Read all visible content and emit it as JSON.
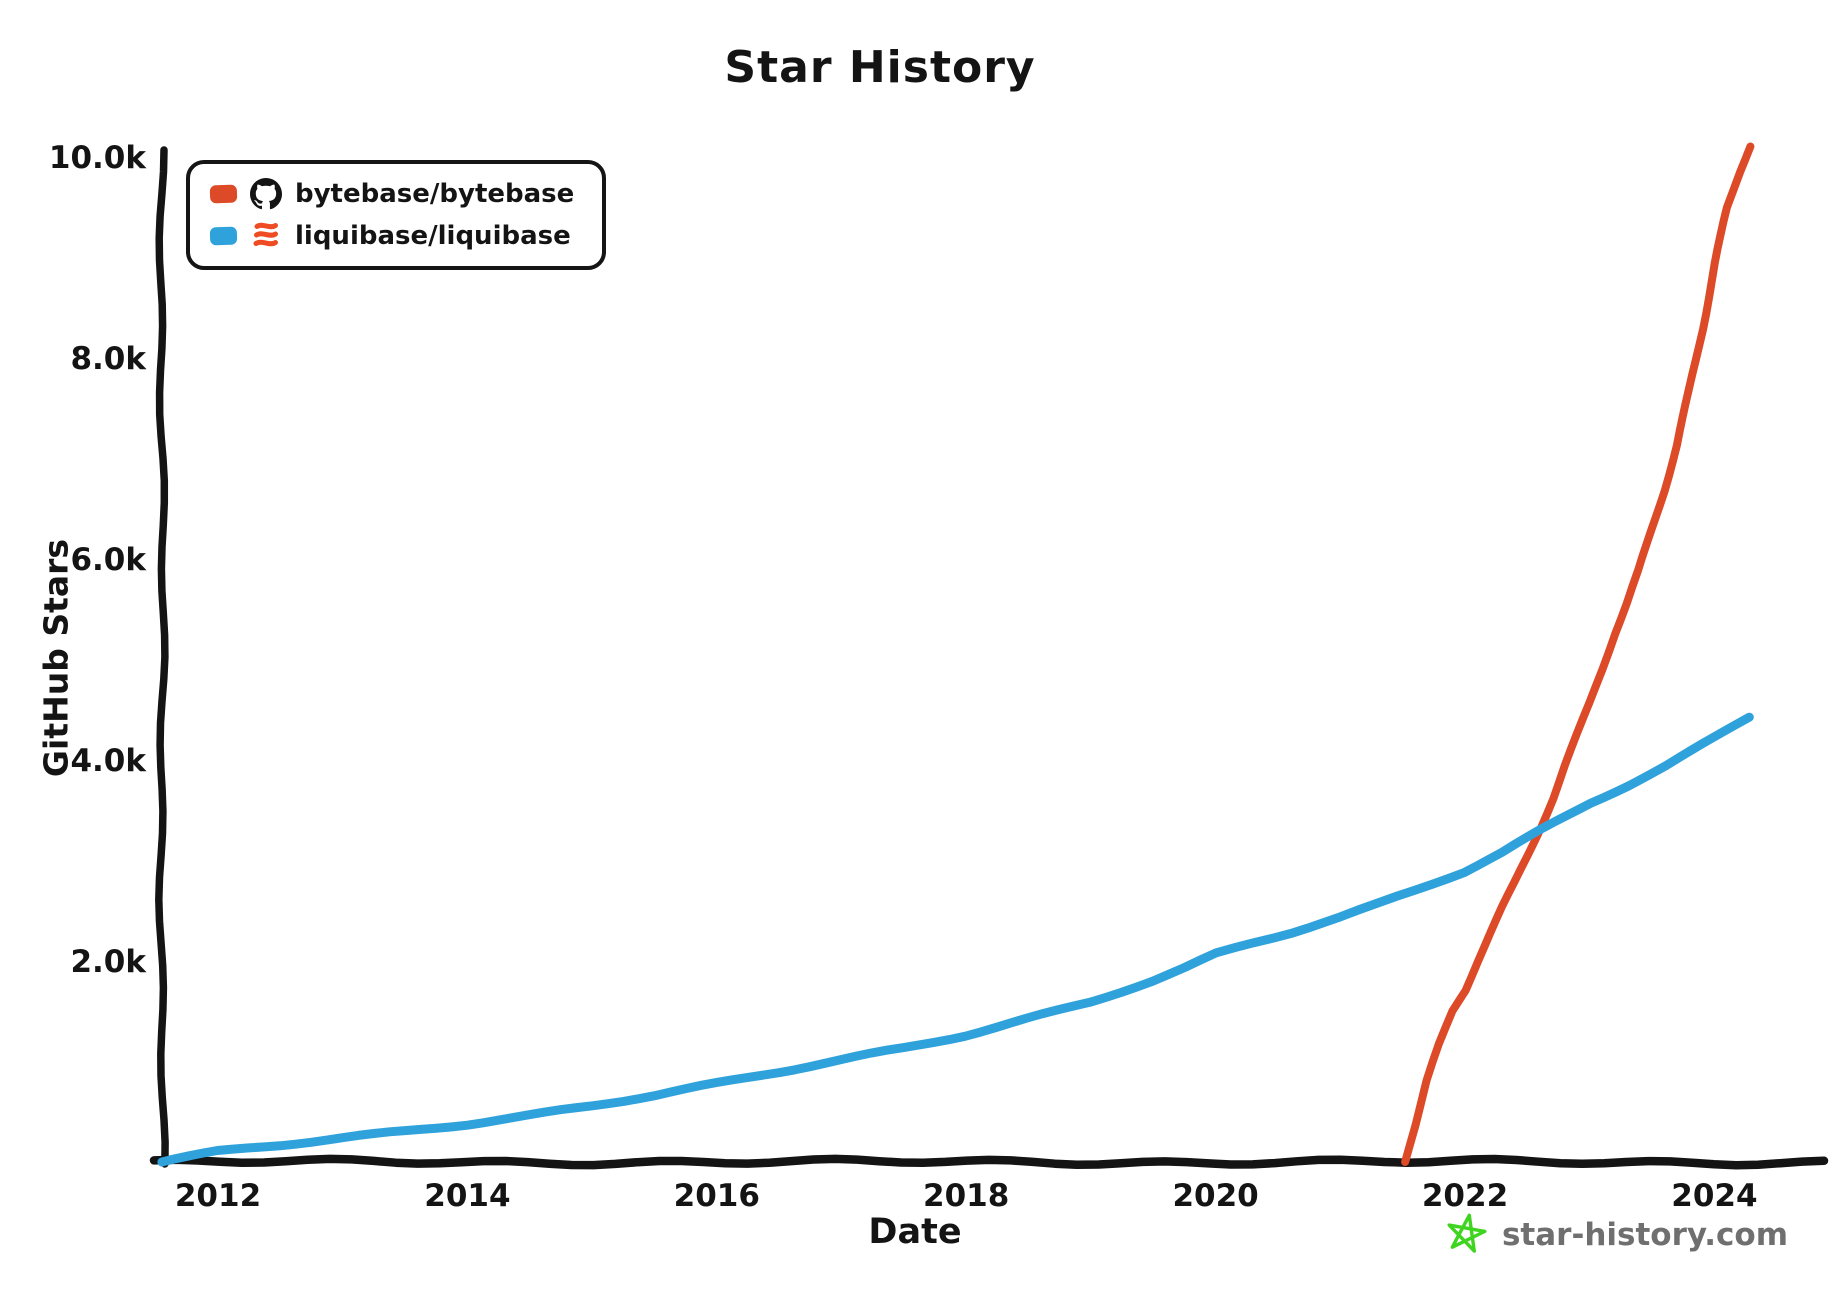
{
  "title": "Star History",
  "legend": [
    {
      "label": "bytebase/bytebase",
      "color": "#dc4a28",
      "icon": "github-octocat"
    },
    {
      "label": "liquibase/liquibase",
      "color": "#2fa2db",
      "icon": "liquibase-logo"
    }
  ],
  "footer": {
    "brand": "star-history.com",
    "star_color": "#3fd41f",
    "text_color": "#6f6f6f"
  },
  "colors": {
    "ink": "#141414",
    "bytebase_line": "#dc4a28",
    "liquibase_line": "#2fa2db",
    "liquibase_icon_orange": "#ef4c23"
  },
  "chart_data": {
    "type": "line",
    "title": "Star History",
    "xlabel": "Date",
    "ylabel": "GitHub Stars",
    "xlim": [
      2011.5,
      2024.45
    ],
    "ylim": [
      0,
      10000
    ],
    "grid": false,
    "legend_position": "top-left",
    "x_ticks": [
      2012,
      2014,
      2016,
      2018,
      2020,
      2022,
      2024
    ],
    "x_tick_labels": [
      "2012",
      "2014",
      "2016",
      "2018",
      "2020",
      "2022",
      "2024"
    ],
    "y_ticks": [
      2000,
      4000,
      6000,
      8000,
      10000
    ],
    "y_tick_labels": [
      "2.0k",
      "4.0k",
      "6.0k",
      "8.0k",
      "10.0k"
    ],
    "series": [
      {
        "name": "bytebase/bytebase",
        "color": "#dc4a28",
        "points": [
          [
            2021.52,
            0
          ],
          [
            2021.6,
            340
          ],
          [
            2021.7,
            790
          ],
          [
            2021.8,
            1160
          ],
          [
            2021.9,
            1490
          ],
          [
            2022.0,
            1700
          ],
          [
            2022.1,
            2000
          ],
          [
            2022.2,
            2280
          ],
          [
            2022.3,
            2550
          ],
          [
            2022.4,
            2800
          ],
          [
            2022.5,
            3060
          ],
          [
            2022.6,
            3330
          ],
          [
            2022.7,
            3620
          ],
          [
            2022.8,
            3950
          ],
          [
            2022.9,
            4250
          ],
          [
            2023.0,
            4560
          ],
          [
            2023.1,
            4900
          ],
          [
            2023.2,
            5250
          ],
          [
            2023.3,
            5560
          ],
          [
            2023.4,
            5900
          ],
          [
            2023.5,
            6300
          ],
          [
            2023.6,
            6700
          ],
          [
            2023.7,
            7150
          ],
          [
            2023.8,
            7700
          ],
          [
            2023.9,
            8300
          ],
          [
            2024.0,
            8950
          ],
          [
            2024.1,
            9500
          ],
          [
            2024.2,
            9850
          ],
          [
            2024.28,
            10100
          ]
        ]
      },
      {
        "name": "liquibase/liquibase",
        "color": "#2fa2db",
        "points": [
          [
            2011.55,
            0
          ],
          [
            2012.0,
            95
          ],
          [
            2012.5,
            165
          ],
          [
            2013.0,
            240
          ],
          [
            2013.5,
            310
          ],
          [
            2014.0,
            385
          ],
          [
            2014.5,
            470
          ],
          [
            2015.0,
            565
          ],
          [
            2015.5,
            665
          ],
          [
            2016.0,
            775
          ],
          [
            2016.5,
            890
          ],
          [
            2017.0,
            1010
          ],
          [
            2017.5,
            1130
          ],
          [
            2018.0,
            1265
          ],
          [
            2018.25,
            1345
          ],
          [
            2018.5,
            1430
          ],
          [
            2019.0,
            1600
          ],
          [
            2019.5,
            1810
          ],
          [
            2019.75,
            1930
          ],
          [
            2020.0,
            2070
          ],
          [
            2020.3,
            2180
          ],
          [
            2020.6,
            2280
          ],
          [
            2021.0,
            2430
          ],
          [
            2021.3,
            2560
          ],
          [
            2021.6,
            2700
          ],
          [
            2022.0,
            2890
          ],
          [
            2022.3,
            3080
          ],
          [
            2022.6,
            3300
          ],
          [
            2023.0,
            3580
          ],
          [
            2023.3,
            3760
          ],
          [
            2023.6,
            3950
          ],
          [
            2024.0,
            4230
          ],
          [
            2024.28,
            4430
          ]
        ]
      }
    ]
  }
}
